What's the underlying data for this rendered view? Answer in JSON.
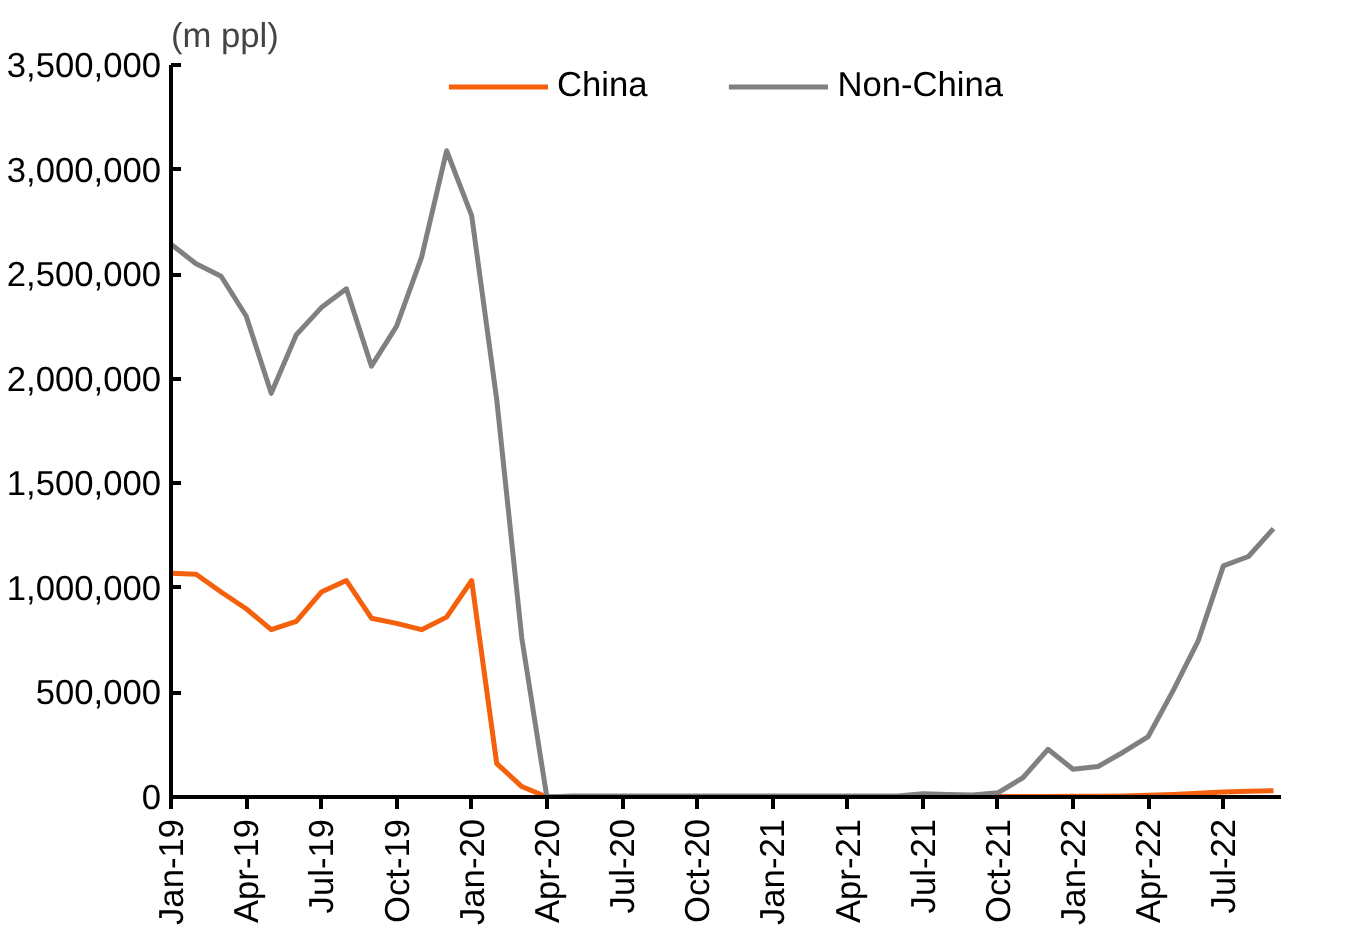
{
  "chart_data": {
    "type": "line",
    "ylabel": "(m ppl)",
    "categories": [
      "Jan-19",
      null,
      null,
      "Apr-19",
      null,
      null,
      "Jul-19",
      null,
      null,
      "Oct-19",
      null,
      null,
      "Jan-20",
      null,
      null,
      "Apr-20",
      null,
      null,
      "Jul-20",
      null,
      null,
      "Oct-20",
      null,
      null,
      "Jan-21",
      null,
      null,
      "Apr-21",
      null,
      null,
      "Jul-21",
      null,
      null,
      "Oct-21",
      null,
      null,
      "Jan-22",
      null,
      null,
      "Apr-22",
      null,
      null,
      "Jul-22",
      null,
      null
    ],
    "series": [
      {
        "name": "China",
        "color": "#f4600c",
        "values": [
          1070000,
          1065000,
          980000,
          900000,
          800000,
          840000,
          980000,
          1035000,
          855000,
          830000,
          800000,
          860000,
          1035000,
          160000,
          50000,
          0,
          1000,
          1000,
          1000,
          1000,
          1000,
          1000,
          1000,
          1000,
          1000,
          1000,
          1000,
          1000,
          1000,
          1000,
          2000,
          2000,
          2000,
          2000,
          2000,
          2000,
          3000,
          3000,
          5000,
          8000,
          12000,
          18000,
          24000,
          27000,
          30000
        ]
      },
      {
        "name": "Non-China",
        "color": "#808080",
        "values": [
          2643000,
          2550000,
          2490000,
          2300000,
          1930000,
          2210000,
          2340000,
          2430000,
          2060000,
          2250000,
          2580000,
          3090000,
          2780000,
          1900000,
          760000,
          0,
          5000,
          5000,
          5000,
          5000,
          5000,
          5000,
          5000,
          5000,
          5000,
          5000,
          5000,
          5000,
          5000,
          5000,
          15000,
          12000,
          10000,
          20000,
          92000,
          228000,
          133000,
          146000,
          214000,
          289000,
          510000,
          748000,
          1105000,
          1150000,
          1283000
        ]
      }
    ],
    "ylim": [
      0,
      3500000
    ],
    "yticks": [
      0,
      {
        "value": 500000,
        "label": "500,000"
      },
      {
        "value": 1000000,
        "label": "1,000,000"
      },
      {
        "value": 1500000,
        "label": "1,500,000"
      },
      {
        "value": 2000000,
        "label": "2,000,000"
      },
      {
        "value": 2500000,
        "label": "2,500,000"
      },
      {
        "value": 3000000,
        "label": "3,000,000"
      },
      {
        "value": 3500000,
        "label": "3,500,000"
      }
    ],
    "grid": false,
    "legend": "top",
    "marker": "none",
    "line_style": "solid"
  }
}
